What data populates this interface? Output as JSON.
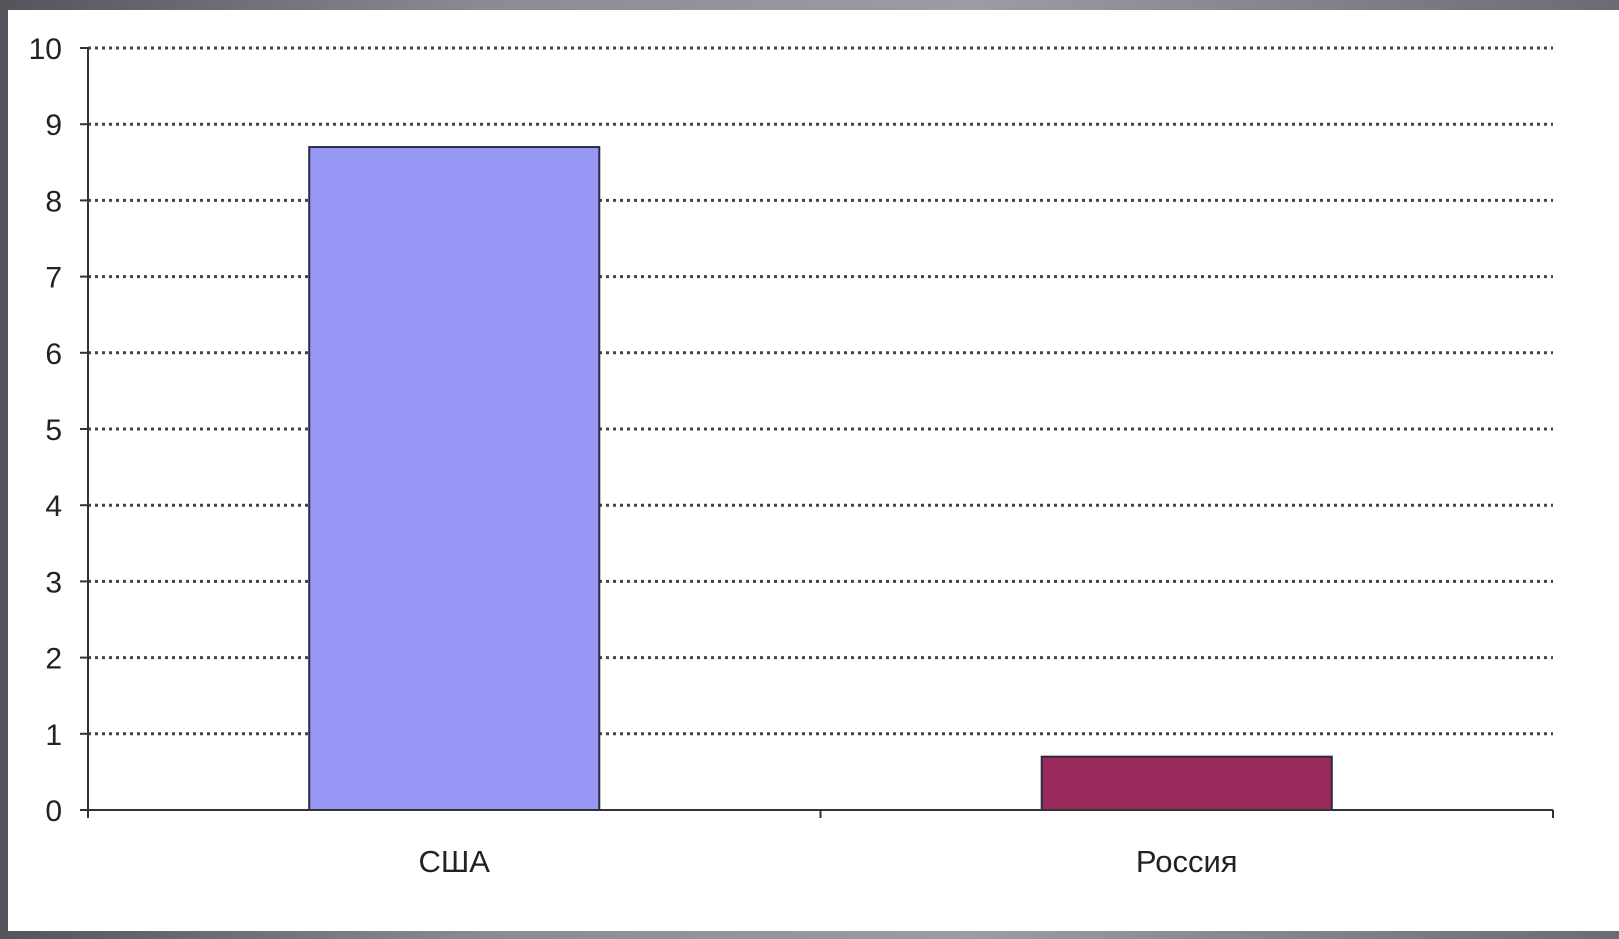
{
  "chart_data": {
    "type": "bar",
    "categories": [
      "США",
      "Россия"
    ],
    "values": [
      8.7,
      0.7
    ],
    "colors": [
      "#9797f5",
      "#9b2a5c"
    ],
    "ylim": [
      0,
      10
    ],
    "yticks": [
      "0",
      "1",
      "2",
      "3",
      "4",
      "5",
      "6",
      "7",
      "8",
      "9",
      "10"
    ],
    "grid": true,
    "grid_style": "dotted",
    "legend": false
  }
}
